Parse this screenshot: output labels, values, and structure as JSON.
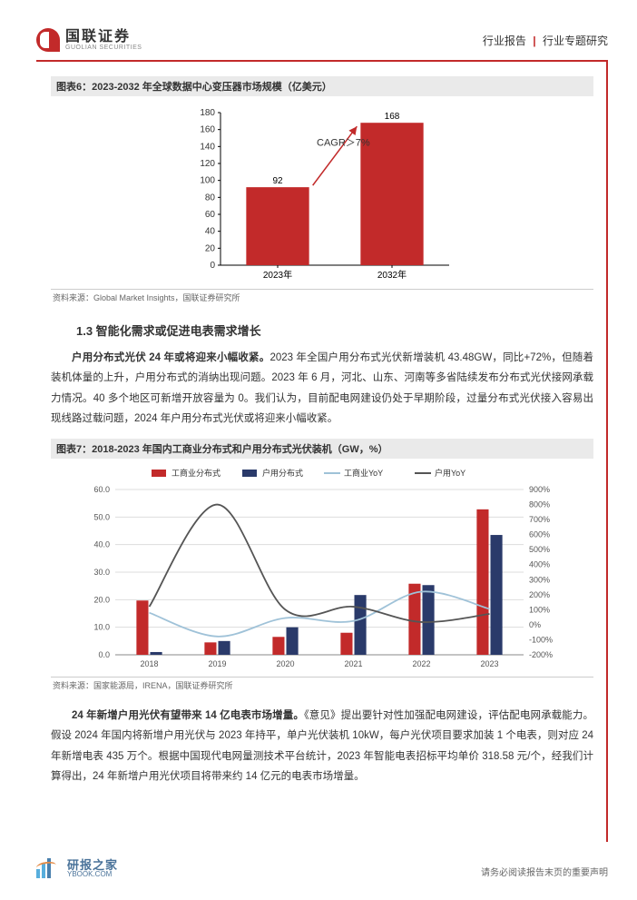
{
  "header": {
    "logo_cn": "国联证券",
    "logo_en": "GUOLIAN SECURITIES",
    "right_left": "行业报告",
    "right_right": "行业专题研究"
  },
  "fig6": {
    "title": "图表6：2023-2032 年全球数据中心变压器市场规模（亿美元）",
    "source": "资料来源：Global Market Insights，国联证券研究所",
    "type": "bar",
    "categories": [
      "2023年",
      "2032年"
    ],
    "values": [
      92,
      168
    ],
    "value_labels": [
      "92",
      "168"
    ],
    "bar_color": "#c22a2a",
    "ylim": [
      0,
      180
    ],
    "ytick_step": 20,
    "yticks": [
      0,
      20,
      40,
      60,
      80,
      100,
      120,
      140,
      160,
      180
    ],
    "axis_color": "#000000",
    "tick_color": "#333333",
    "label_fontsize": 10,
    "annotation": "CAGR＞7%",
    "annotation_color": "#c22a2a",
    "arrow_color": "#c22a2a",
    "bar_width": 0.55,
    "background_color": "#ffffff"
  },
  "section_1_3": "1.3 智能化需求或促进电表需求增长",
  "para1_bold": "户用分布式光伏 24 年或将迎来小幅收紧。",
  "para1_rest": "2023 年全国户用分布式光伏新增装机 43.48GW，同比+72%，但随着装机体量的上升，户用分布式的消纳出现问题。2023 年 6 月，河北、山东、河南等多省陆续发布分布式光伏接网承载力情况。40 多个地区可新增开放容量为 0。我们认为，目前配电网建设仍处于早期阶段，过量分布式光伏接入容易出现线路过载问题，2024 年户用分布式光伏或将迎来小幅收紧。",
  "fig7": {
    "title": "图表7：2018-2023 年国内工商业分布式和户用分布式光伏装机（GW，%）",
    "source": "资料来源：国家能源局，IRENA，国联证券研究所",
    "type": "bar+line",
    "categories": [
      "2018",
      "2019",
      "2020",
      "2021",
      "2022",
      "2023"
    ],
    "series": {
      "commercial_bar": {
        "label": "工商业分布式",
        "color": "#c22a2a",
        "values": [
          19.7,
          4.5,
          6.5,
          8.0,
          25.8,
          52.8
        ]
      },
      "household_bar": {
        "label": "户用分布式",
        "color": "#2a3a6a",
        "values": [
          1.0,
          5.0,
          10.0,
          21.7,
          25.3,
          43.5
        ]
      },
      "commercial_yoy": {
        "label": "工商业YoY",
        "color": "#9fc2d8",
        "values": [
          80,
          -78,
          45,
          25,
          220,
          105
        ]
      },
      "household_yoy": {
        "label": "户用YoY",
        "color": "#555555",
        "values": [
          120,
          800,
          100,
          120,
          18,
          72
        ]
      }
    },
    "left_ylim": [
      0,
      60
    ],
    "left_ytick_step": 10,
    "left_yticks": [
      "0.0",
      "10.0",
      "20.0",
      "30.0",
      "40.0",
      "50.0",
      "60.0"
    ],
    "right_ylim": [
      -200,
      900
    ],
    "right_ytick_step": 100,
    "right_yticks": [
      "-200%",
      "-100%",
      "0%",
      "100%",
      "200%",
      "300%",
      "400%",
      "500%",
      "600%",
      "700%",
      "800%",
      "900%"
    ],
    "grid_color": "#dddddd",
    "axis_color": "#888888",
    "legend_position": "top",
    "bar_width": 0.35,
    "line_width": 1.8,
    "background_color": "#ffffff"
  },
  "para2_bold": "24 年新增户用光伏有望带来 14 亿电表市场增量。",
  "para2_rest": "《意见》提出要针对性加强配电网建设，评估配电网承载能力。假设 2024 年国内将新增户用光伏与 2023 年持平，单户光伏装机 10kW，每户光伏项目要求加装 1 个电表，则对应 24 年新增电表 435 万个。根据中国现代电网量测技术平台统计，2023 年智能电表招标平均单价 318.58 元/个，经我们计算得出，24 年新增户用光伏项目将带来约 14 亿元的电表市场增量。",
  "watermark": {
    "cn": "研报之家",
    "en": "YBOOK.COM"
  },
  "footer_note": "请务必阅读报告末页的重要声明"
}
